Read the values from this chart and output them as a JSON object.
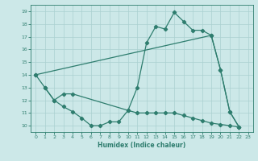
{
  "line1_x": [
    0,
    1,
    2,
    3,
    4,
    10,
    11,
    12,
    13,
    14,
    15,
    16,
    17,
    18,
    19,
    20,
    21,
    22
  ],
  "line1_y": [
    14,
    13,
    12,
    12.5,
    12.5,
    11.2,
    13,
    16.5,
    17.8,
    17.6,
    18.9,
    18.2,
    17.5,
    17.5,
    17.1,
    14.4,
    11.1,
    9.9
  ],
  "line2_x": [
    0,
    19,
    20,
    21,
    22
  ],
  "line2_y": [
    14,
    17.1,
    14.4,
    11.1,
    9.9
  ],
  "line3_x": [
    1,
    2,
    3,
    4,
    5,
    6,
    7,
    8,
    9,
    10,
    11,
    12,
    13,
    14,
    15,
    16,
    17,
    18,
    19,
    20,
    21,
    22
  ],
  "line3_y": [
    13,
    12,
    11.5,
    11.1,
    10.6,
    10.0,
    10.0,
    10.3,
    10.3,
    11.2,
    11.0,
    11.0,
    11.0,
    11.0,
    11.0,
    10.8,
    10.6,
    10.4,
    10.2,
    10.1,
    10.0,
    9.9
  ],
  "line_color": "#2e7d6e",
  "bg_color": "#cce8e8",
  "grid_color": "#aad0d0",
  "xlabel": "Humidex (Indice chaleur)",
  "xlim": [
    -0.5,
    23.5
  ],
  "ylim": [
    9.5,
    19.5
  ],
  "xticks": [
    0,
    1,
    2,
    3,
    4,
    5,
    6,
    7,
    8,
    9,
    10,
    11,
    12,
    13,
    14,
    15,
    16,
    17,
    18,
    19,
    20,
    21,
    22,
    23
  ],
  "yticks": [
    10,
    11,
    12,
    13,
    14,
    15,
    16,
    17,
    18,
    19
  ]
}
